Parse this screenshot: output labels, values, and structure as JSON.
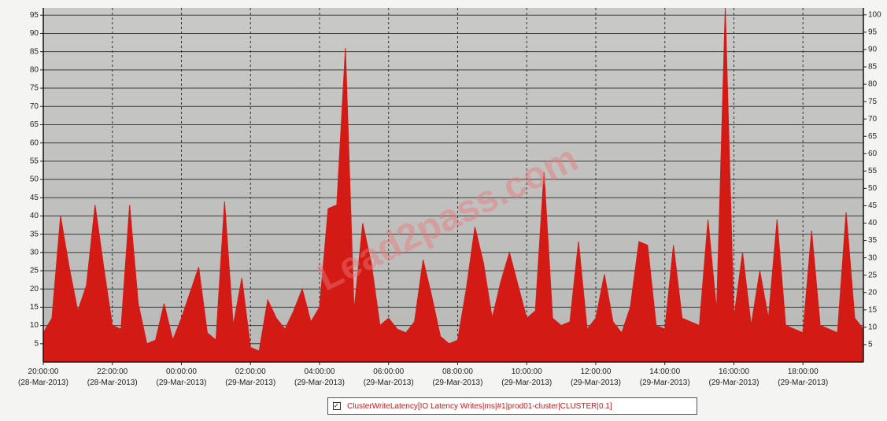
{
  "chart_data": {
    "type": "area",
    "watermark": "Lead2pass.com",
    "legend": "ClusterWriteLatency[IO Latency Writes|ms|#1|prod01-cluster|CLUSTER|0.1]",
    "legend_position": "bottom",
    "grid": true,
    "x": [
      "2013-03-28T20:00",
      "2013-03-28T20:15",
      "2013-03-28T20:30",
      "2013-03-28T20:45",
      "2013-03-28T21:00",
      "2013-03-28T21:15",
      "2013-03-28T21:30",
      "2013-03-28T21:45",
      "2013-03-28T22:00",
      "2013-03-28T22:15",
      "2013-03-28T22:30",
      "2013-03-28T22:45",
      "2013-03-28T23:00",
      "2013-03-28T23:15",
      "2013-03-28T23:30",
      "2013-03-28T23:45",
      "2013-03-29T00:00",
      "2013-03-29T00:15",
      "2013-03-29T00:30",
      "2013-03-29T00:45",
      "2013-03-29T01:00",
      "2013-03-29T01:15",
      "2013-03-29T01:30",
      "2013-03-29T01:45",
      "2013-03-29T02:00",
      "2013-03-29T02:15",
      "2013-03-29T02:30",
      "2013-03-29T02:45",
      "2013-03-29T03:00",
      "2013-03-29T03:15",
      "2013-03-29T03:30",
      "2013-03-29T03:45",
      "2013-03-29T04:00",
      "2013-03-29T04:15",
      "2013-03-29T04:30",
      "2013-03-29T04:45",
      "2013-03-29T05:00",
      "2013-03-29T05:15",
      "2013-03-29T05:30",
      "2013-03-29T05:45",
      "2013-03-29T06:00",
      "2013-03-29T06:15",
      "2013-03-29T06:30",
      "2013-03-29T06:45",
      "2013-03-29T07:00",
      "2013-03-29T07:15",
      "2013-03-29T07:30",
      "2013-03-29T07:45",
      "2013-03-29T08:00",
      "2013-03-29T08:15",
      "2013-03-29T08:30",
      "2013-03-29T08:45",
      "2013-03-29T09:00",
      "2013-03-29T09:15",
      "2013-03-29T09:30",
      "2013-03-29T09:45",
      "2013-03-29T10:00",
      "2013-03-29T10:15",
      "2013-03-29T10:30",
      "2013-03-29T10:45",
      "2013-03-29T11:00",
      "2013-03-29T11:15",
      "2013-03-29T11:30",
      "2013-03-29T11:45",
      "2013-03-29T12:00",
      "2013-03-29T12:15",
      "2013-03-29T12:30",
      "2013-03-29T12:45",
      "2013-03-29T13:00",
      "2013-03-29T13:15",
      "2013-03-29T13:30",
      "2013-03-29T13:45",
      "2013-03-29T14:00",
      "2013-03-29T14:15",
      "2013-03-29T14:30",
      "2013-03-29T14:45",
      "2013-03-29T15:00",
      "2013-03-29T15:15",
      "2013-03-29T15:30",
      "2013-03-29T15:45",
      "2013-03-29T16:00",
      "2013-03-29T16:15",
      "2013-03-29T16:30",
      "2013-03-29T16:45",
      "2013-03-29T17:00",
      "2013-03-29T17:15",
      "2013-03-29T17:30",
      "2013-03-29T17:45",
      "2013-03-29T18:00",
      "2013-03-29T18:15",
      "2013-03-29T18:30",
      "2013-03-29T18:45",
      "2013-03-29T19:00",
      "2013-03-29T19:15",
      "2013-03-29T19:30",
      "2013-03-29T19:45"
    ],
    "series": [
      {
        "name": "ClusterWriteLatency[IO Latency Writes|ms|#1|prod01-cluster|CLUSTER|0.1]",
        "color": "#d41a14",
        "values": [
          8,
          12,
          40,
          26,
          14,
          21,
          43,
          26,
          10,
          9,
          43,
          16,
          5,
          6,
          16,
          6,
          12,
          19,
          26,
          8,
          6,
          44,
          10,
          23,
          4,
          3,
          17,
          12,
          9,
          14,
          20,
          11,
          15,
          42,
          43,
          86,
          14,
          38,
          27,
          10,
          12,
          9,
          8,
          11,
          28,
          18,
          7,
          5,
          6,
          20,
          37,
          27,
          12,
          22,
          30,
          21,
          12,
          14,
          52,
          12,
          10,
          11,
          33,
          9,
          12,
          24,
          11,
          8,
          15,
          33,
          32,
          10,
          9,
          32,
          12,
          11,
          10,
          39,
          14,
          97,
          12,
          30,
          10,
          25,
          12,
          39,
          10,
          9,
          8,
          36,
          10,
          9,
          8,
          41,
          12,
          9
        ]
      }
    ],
    "xlim": [
      "2013-03-28T20:00",
      "2013-03-29T19:45"
    ],
    "xticks": [
      {
        "value": "2013-03-28T20:00",
        "label": "20:00:00\n(28-Mar-2013)"
      },
      {
        "value": "2013-03-28T22:00",
        "label": "22:00:00\n(28-Mar-2013)"
      },
      {
        "value": "2013-03-29T00:00",
        "label": "00:00:00\n(29-Mar-2013)"
      },
      {
        "value": "2013-03-29T02:00",
        "label": "02:00:00\n(29-Mar-2013)"
      },
      {
        "value": "2013-03-29T04:00",
        "label": "04:00:00\n(29-Mar-2013)"
      },
      {
        "value": "2013-03-29T06:00",
        "label": "06:00:00\n(29-Mar-2013)"
      },
      {
        "value": "2013-03-29T08:00",
        "label": "08:00:00\n(29-Mar-2013)"
      },
      {
        "value": "2013-03-29T10:00",
        "label": "10:00:00\n(29-Mar-2013)"
      },
      {
        "value": "2013-03-29T12:00",
        "label": "12:00:00\n(29-Mar-2013)"
      },
      {
        "value": "2013-03-29T14:00",
        "label": "14:00:00\n(29-Mar-2013)"
      },
      {
        "value": "2013-03-29T16:00",
        "label": "16:00:00\n(29-Mar-2013)"
      },
      {
        "value": "2013-03-29T18:00",
        "label": "18:00:00\n(29-Mar-2013)"
      }
    ],
    "ylim": [
      0,
      97
    ],
    "yticks": [
      5,
      10,
      15,
      20,
      25,
      30,
      35,
      40,
      45,
      50,
      55,
      60,
      65,
      70,
      75,
      80,
      85,
      90,
      95
    ],
    "y2lim": [
      0,
      102
    ],
    "y2ticks": [
      5,
      10,
      15,
      20,
      25,
      30,
      35,
      40,
      45,
      50,
      55,
      60,
      65,
      70,
      75,
      80,
      85,
      90,
      95,
      100
    ]
  }
}
